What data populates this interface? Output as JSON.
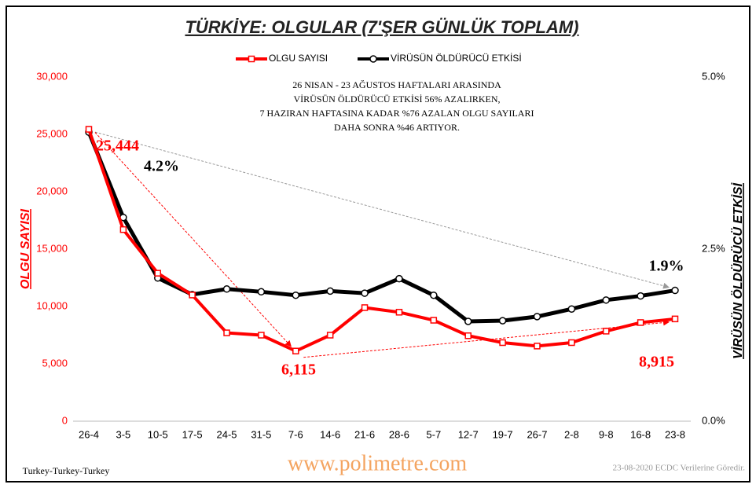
{
  "chart_data": {
    "type": "line",
    "title": "TÜRKİYE: OLGULAR (7'ŞER GÜNLÜK TOPLAM)",
    "y_label": "OLGU SAYISI",
    "y2_label": "VİRÜSÜN ÖLDÜRÜCÜ ETKİSİ",
    "note": [
      "26 NISAN - 23 AĞUSTOS  HAFTALARI ARASINDA",
      "VİRÜSÜN  ÖLDÜRÜCÜ  ETKİSİ 56% AZALIRKEN,",
      "7 HAZIRAN HAFTASINA KADAR %76 AZALAN OLGU SAYILARI",
      "DAHA SONRA %46 ARTIYOR."
    ],
    "footer_left": "Turkey-Turkey-Turkey",
    "footer_center": "www.polimetre.com",
    "footer_right": "23-08-2020  ECDC Verilerine  Göredir.",
    "categories": [
      "26-4",
      "3-5",
      "10-5",
      "17-5",
      "24-5",
      "31-5",
      "7-6",
      "14-6",
      "21-6",
      "28-6",
      "5-7",
      "12-7",
      "19-7",
      "26-7",
      "2-8",
      "9-8",
      "16-8",
      "23-8"
    ],
    "series": [
      {
        "name": "OLGU SAYISI",
        "color": "#ff0000",
        "values": [
          25444,
          16700,
          12900,
          11000,
          7700,
          7500,
          6115,
          7500,
          9900,
          9500,
          8800,
          7450,
          6850,
          6550,
          6850,
          7850,
          8600,
          8915
        ],
        "value_labels": [
          "25,444",
          null,
          null,
          null,
          null,
          null,
          "6,115",
          null,
          null,
          null,
          null,
          null,
          null,
          null,
          null,
          null,
          null,
          "8,915"
        ]
      },
      {
        "name": "VİRÜSÜN ÖLDÜRÜCÜ ETKİSİ",
        "color": "#000000",
        "axis": "y2",
        "values": [
          4.2,
          2.96,
          2.08,
          1.84,
          1.92,
          1.88,
          1.83,
          1.89,
          1.86,
          2.07,
          1.83,
          1.45,
          1.46,
          1.52,
          1.63,
          1.76,
          1.82,
          1.9
        ],
        "value_labels": [
          "4.2%",
          null,
          null,
          null,
          null,
          null,
          null,
          null,
          null,
          null,
          null,
          null,
          null,
          null,
          null,
          null,
          null,
          "1.9%"
        ]
      }
    ],
    "ylim": [
      0,
      30000
    ],
    "yticks": [
      0,
      {
        "value": 5000,
        "label": "5,000"
      },
      {
        "value": 10000,
        "label": "10,000"
      },
      {
        "value": 15000,
        "label": "15,000"
      },
      {
        "value": 20000,
        "label": "20,000"
      },
      {
        "value": 25000,
        "label": "25,000"
      },
      {
        "value": 30000,
        "label": "30,000"
      }
    ],
    "y2lim": [
      0,
      5
    ],
    "y2ticks": [
      {
        "value": 0,
        "label": "0.0%"
      },
      {
        "value": 2.5,
        "label": "2.5%"
      },
      {
        "value": 5,
        "label": "5.0%"
      }
    ],
    "grid": false,
    "legend": "top"
  }
}
